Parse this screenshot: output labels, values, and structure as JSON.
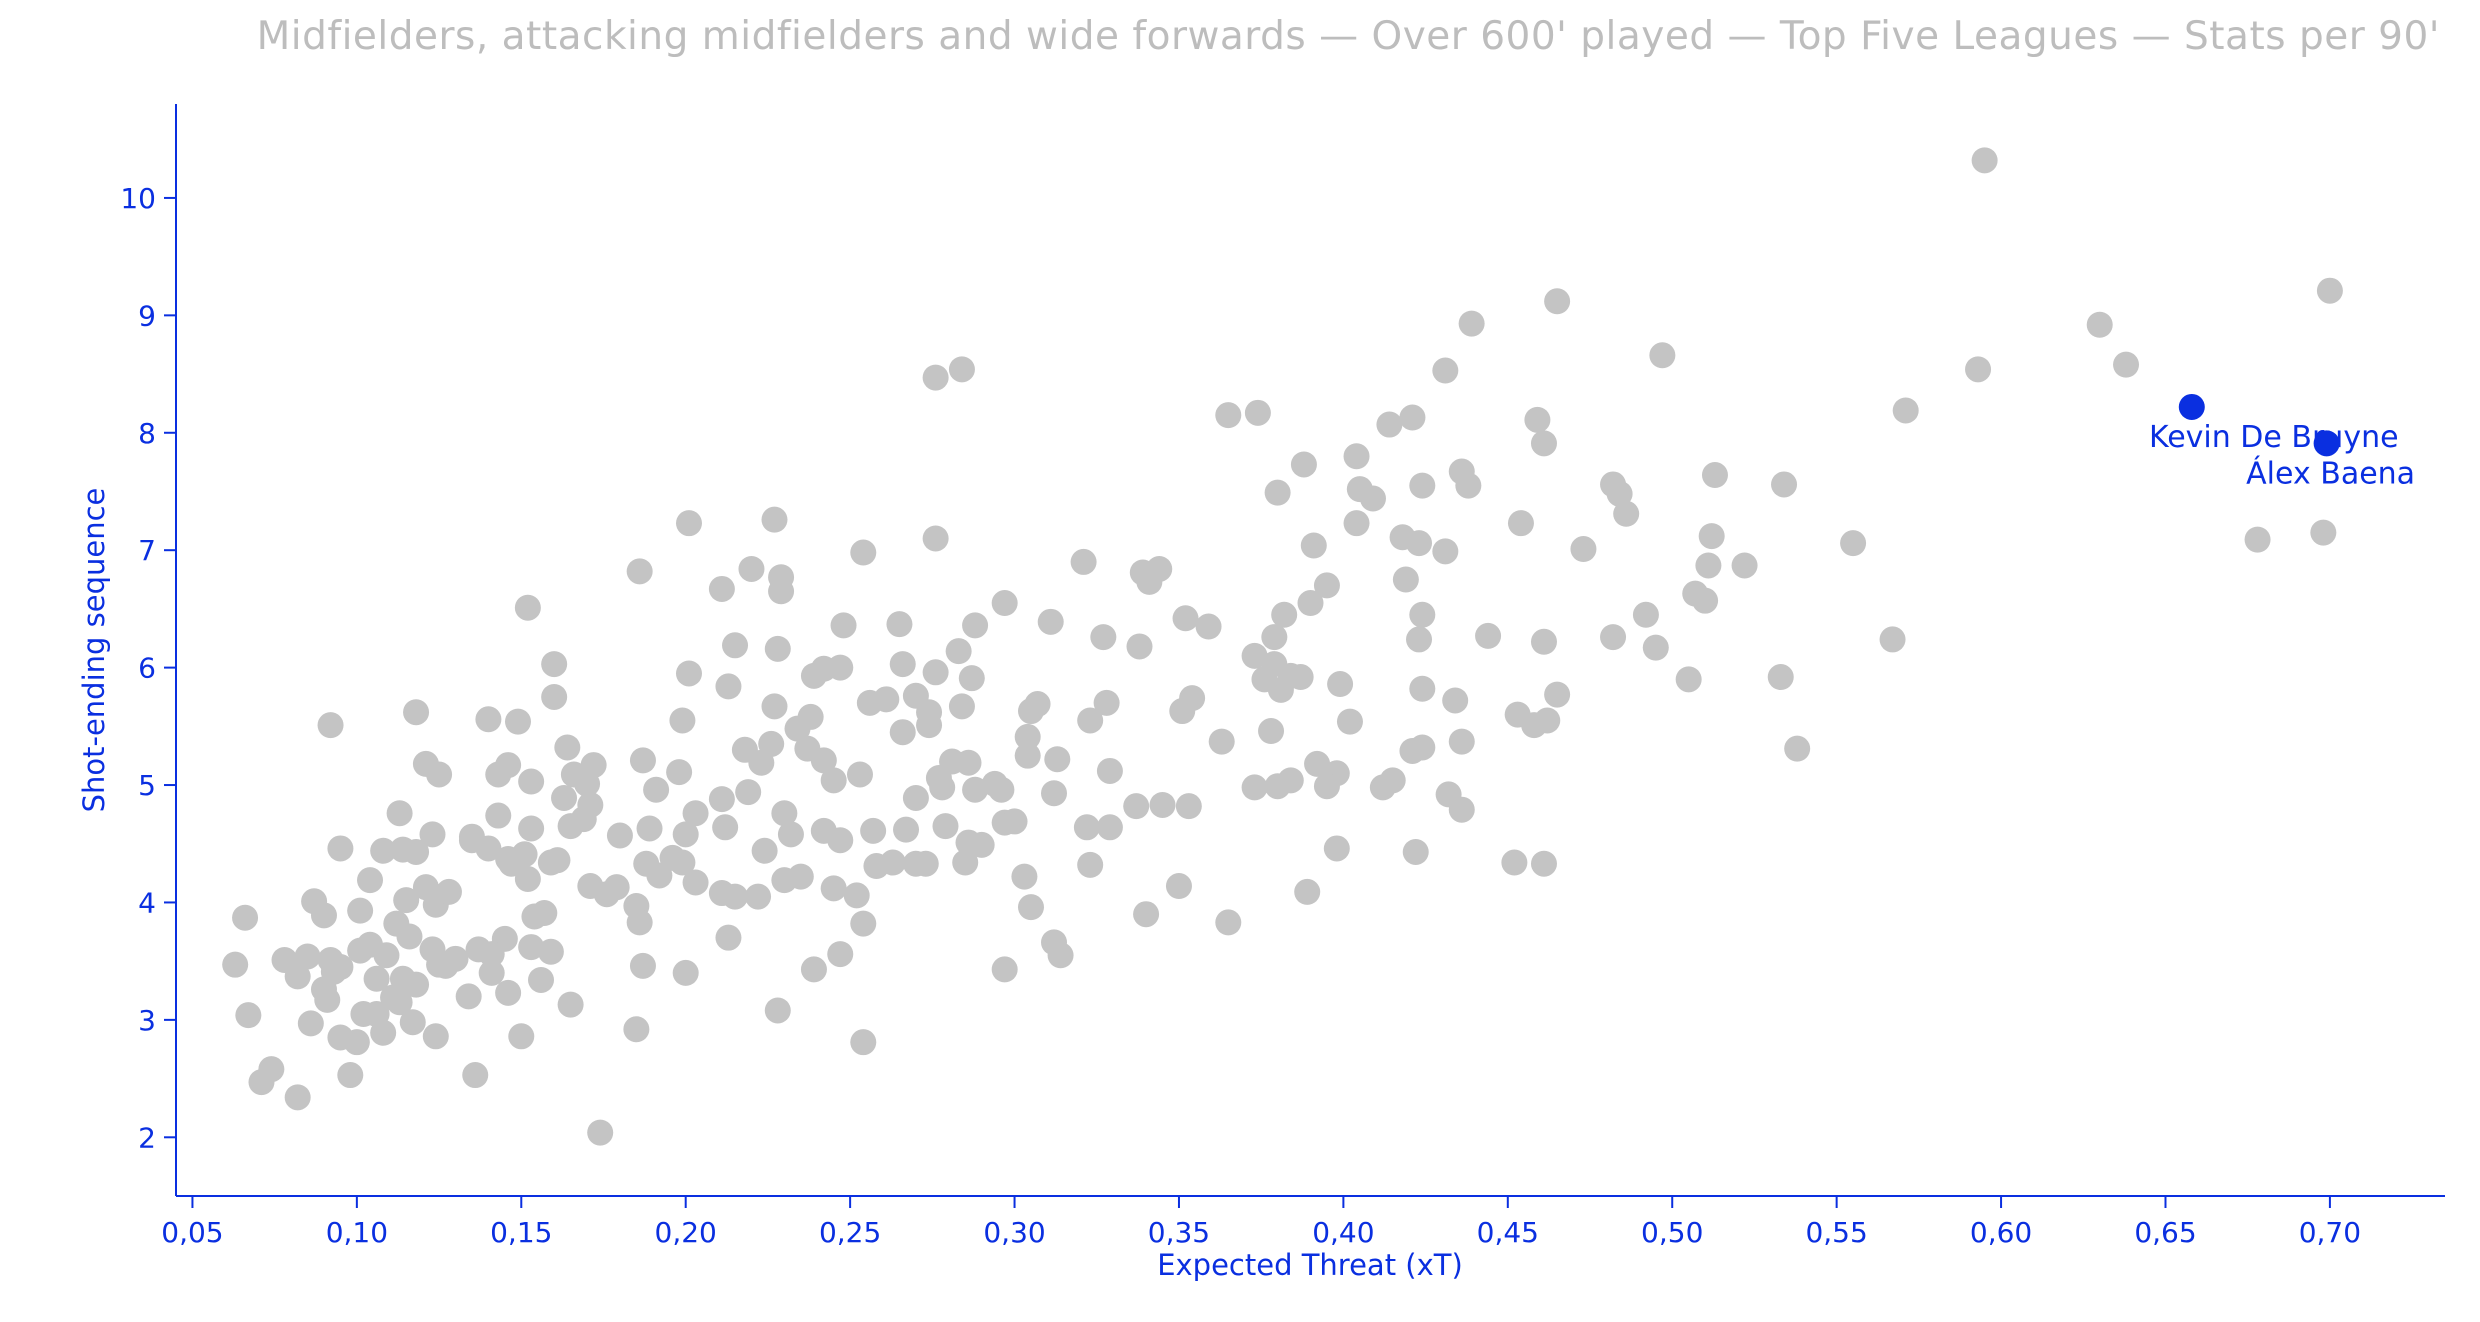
{
  "chart_data": {
    "type": "scatter",
    "subtitle": "Midfielders, attacking midfielders and wide forwards — Over 600' played — Top Five Leagues — Stats per 90'",
    "xlabel": "Expected Threat (xT)",
    "ylabel": "Shot-ending sequence",
    "xlim": [
      0.045,
      0.735
    ],
    "ylim": [
      1.5,
      10.8
    ],
    "x_ticks": [
      "0,05",
      "0,10",
      "0,15",
      "0,20",
      "0,25",
      "0,30",
      "0,35",
      "0,40",
      "0,45",
      "0,50",
      "0,55",
      "0,60",
      "0,65",
      "0,70"
    ],
    "y_ticks": [
      "2",
      "3",
      "4",
      "5",
      "6",
      "7",
      "8",
      "9",
      "10"
    ],
    "grid": false,
    "colors": {
      "points": "#c4c4c4",
      "highlight": "#0a2fe0",
      "axis": "#0a2fe0",
      "subtitle": "#bdbdbd"
    },
    "highlighted": [
      {
        "name": "Kevin De Bruyne",
        "x": 0.658,
        "y": 8.22
      },
      {
        "name": "Álex Baena",
        "x": 0.699,
        "y": 7.91
      }
    ],
    "points": [
      [
        0.595,
        10.32
      ],
      [
        0.7,
        9.21
      ],
      [
        0.465,
        9.12
      ],
      [
        0.439,
        8.93
      ],
      [
        0.63,
        8.92
      ],
      [
        0.497,
        8.66
      ],
      [
        0.593,
        8.54
      ],
      [
        0.638,
        8.58
      ],
      [
        0.284,
        8.54
      ],
      [
        0.276,
        8.47
      ],
      [
        0.431,
        8.53
      ],
      [
        0.571,
        8.19
      ],
      [
        0.365,
        8.15
      ],
      [
        0.374,
        8.17
      ],
      [
        0.414,
        8.07
      ],
      [
        0.421,
        8.13
      ],
      [
        0.459,
        8.11
      ],
      [
        0.461,
        7.91
      ],
      [
        0.404,
        7.8
      ],
      [
        0.388,
        7.73
      ],
      [
        0.436,
        7.67
      ],
      [
        0.438,
        7.55
      ],
      [
        0.424,
        7.55
      ],
      [
        0.38,
        7.49
      ],
      [
        0.405,
        7.52
      ],
      [
        0.409,
        7.44
      ],
      [
        0.482,
        7.56
      ],
      [
        0.484,
        7.48
      ],
      [
        0.513,
        7.64
      ],
      [
        0.534,
        7.56
      ],
      [
        0.486,
        7.31
      ],
      [
        0.454,
        7.23
      ],
      [
        0.404,
        7.23
      ],
      [
        0.227,
        7.26
      ],
      [
        0.201,
        7.23
      ],
      [
        0.512,
        7.12
      ],
      [
        0.555,
        7.06
      ],
      [
        0.418,
        7.11
      ],
      [
        0.423,
        7.06
      ],
      [
        0.431,
        6.99
      ],
      [
        0.473,
        7.01
      ],
      [
        0.511,
        6.87
      ],
      [
        0.522,
        6.87
      ],
      [
        0.678,
        7.09
      ],
      [
        0.698,
        7.15
      ],
      [
        0.276,
        7.1
      ],
      [
        0.254,
        6.98
      ],
      [
        0.186,
        6.82
      ],
      [
        0.22,
        6.84
      ],
      [
        0.229,
        6.77
      ],
      [
        0.211,
        6.67
      ],
      [
        0.229,
        6.65
      ],
      [
        0.321,
        6.9
      ],
      [
        0.339,
        6.81
      ],
      [
        0.344,
        6.84
      ],
      [
        0.341,
        6.73
      ],
      [
        0.391,
        7.04
      ],
      [
        0.395,
        6.7
      ],
      [
        0.419,
        6.75
      ],
      [
        0.39,
        6.55
      ],
      [
        0.297,
        6.55
      ],
      [
        0.288,
        6.36
      ],
      [
        0.265,
        6.37
      ],
      [
        0.248,
        6.36
      ],
      [
        0.152,
        6.51
      ],
      [
        0.311,
        6.39
      ],
      [
        0.352,
        6.42
      ],
      [
        0.359,
        6.35
      ],
      [
        0.382,
        6.45
      ],
      [
        0.424,
        6.45
      ],
      [
        0.423,
        6.24
      ],
      [
        0.444,
        6.27
      ],
      [
        0.461,
        6.22
      ],
      [
        0.482,
        6.26
      ],
      [
        0.492,
        6.45
      ],
      [
        0.495,
        6.17
      ],
      [
        0.507,
        6.63
      ],
      [
        0.51,
        6.57
      ],
      [
        0.567,
        6.24
      ],
      [
        0.327,
        6.26
      ],
      [
        0.338,
        6.18
      ],
      [
        0.373,
        6.1
      ],
      [
        0.379,
        6.26
      ],
      [
        0.379,
        6.03
      ],
      [
        0.16,
        6.03
      ],
      [
        0.215,
        6.19
      ],
      [
        0.228,
        6.16
      ],
      [
        0.201,
        5.95
      ],
      [
        0.242,
        5.99
      ],
      [
        0.247,
        6.0
      ],
      [
        0.239,
        5.93
      ],
      [
        0.266,
        6.03
      ],
      [
        0.276,
        5.96
      ],
      [
        0.283,
        6.14
      ],
      [
        0.287,
        5.91
      ],
      [
        0.384,
        5.93
      ],
      [
        0.387,
        5.92
      ],
      [
        0.376,
        5.9
      ],
      [
        0.399,
        5.86
      ],
      [
        0.424,
        5.82
      ],
      [
        0.434,
        5.72
      ],
      [
        0.465,
        5.77
      ],
      [
        0.505,
        5.9
      ],
      [
        0.533,
        5.92
      ],
      [
        0.118,
        5.62
      ],
      [
        0.16,
        5.75
      ],
      [
        0.149,
        5.54
      ],
      [
        0.14,
        5.56
      ],
      [
        0.199,
        5.55
      ],
      [
        0.213,
        5.84
      ],
      [
        0.227,
        5.67
      ],
      [
        0.234,
        5.48
      ],
      [
        0.238,
        5.58
      ],
      [
        0.256,
        5.7
      ],
      [
        0.261,
        5.73
      ],
      [
        0.27,
        5.76
      ],
      [
        0.274,
        5.62
      ],
      [
        0.284,
        5.67
      ],
      [
        0.305,
        5.63
      ],
      [
        0.307,
        5.69
      ],
      [
        0.323,
        5.55
      ],
      [
        0.328,
        5.7
      ],
      [
        0.351,
        5.63
      ],
      [
        0.354,
        5.74
      ],
      [
        0.381,
        5.81
      ],
      [
        0.402,
        5.54
      ],
      [
        0.453,
        5.6
      ],
      [
        0.458,
        5.51
      ],
      [
        0.462,
        5.55
      ],
      [
        0.538,
        5.31
      ],
      [
        0.092,
        5.51
      ],
      [
        0.121,
        5.18
      ],
      [
        0.125,
        5.09
      ],
      [
        0.143,
        5.09
      ],
      [
        0.146,
        5.17
      ],
      [
        0.153,
        5.03
      ],
      [
        0.164,
        5.32
      ],
      [
        0.166,
        5.09
      ],
      [
        0.17,
        5.01
      ],
      [
        0.172,
        5.17
      ],
      [
        0.187,
        5.21
      ],
      [
        0.198,
        5.11
      ],
      [
        0.211,
        4.88
      ],
      [
        0.218,
        5.3
      ],
      [
        0.223,
        5.19
      ],
      [
        0.226,
        5.35
      ],
      [
        0.237,
        5.31
      ],
      [
        0.242,
        5.21
      ],
      [
        0.245,
        5.04
      ],
      [
        0.253,
        5.09
      ],
      [
        0.266,
        5.45
      ],
      [
        0.274,
        5.51
      ],
      [
        0.277,
        5.06
      ],
      [
        0.281,
        5.2
      ],
      [
        0.286,
        5.19
      ],
      [
        0.294,
        5.01
      ],
      [
        0.304,
        5.25
      ],
      [
        0.304,
        5.41
      ],
      [
        0.313,
        5.22
      ],
      [
        0.329,
        5.12
      ],
      [
        0.363,
        5.37
      ],
      [
        0.378,
        5.46
      ],
      [
        0.392,
        5.18
      ],
      [
        0.398,
        5.1
      ],
      [
        0.421,
        5.29
      ],
      [
        0.436,
        5.37
      ],
      [
        0.415,
        5.04
      ],
      [
        0.412,
        4.98
      ],
      [
        0.424,
        5.32
      ],
      [
        0.373,
        4.98
      ],
      [
        0.38,
        4.99
      ],
      [
        0.384,
        5.04
      ],
      [
        0.395,
        4.99
      ],
      [
        0.113,
        4.76
      ],
      [
        0.114,
        4.45
      ],
      [
        0.123,
        4.58
      ],
      [
        0.135,
        4.56
      ],
      [
        0.14,
        4.46
      ],
      [
        0.143,
        4.74
      ],
      [
        0.146,
        4.37
      ],
      [
        0.151,
        4.41
      ],
      [
        0.153,
        4.63
      ],
      [
        0.159,
        4.34
      ],
      [
        0.163,
        4.89
      ],
      [
        0.165,
        4.65
      ],
      [
        0.169,
        4.71
      ],
      [
        0.171,
        4.83
      ],
      [
        0.18,
        4.57
      ],
      [
        0.189,
        4.63
      ],
      [
        0.191,
        4.96
      ],
      [
        0.196,
        4.38
      ],
      [
        0.2,
        4.58
      ],
      [
        0.203,
        4.76
      ],
      [
        0.212,
        4.64
      ],
      [
        0.219,
        4.94
      ],
      [
        0.224,
        4.44
      ],
      [
        0.23,
        4.76
      ],
      [
        0.232,
        4.58
      ],
      [
        0.242,
        4.61
      ],
      [
        0.247,
        4.53
      ],
      [
        0.257,
        4.61
      ],
      [
        0.267,
        4.62
      ],
      [
        0.27,
        4.89
      ],
      [
        0.278,
        4.98
      ],
      [
        0.279,
        4.65
      ],
      [
        0.286,
        4.51
      ],
      [
        0.288,
        4.96
      ],
      [
        0.296,
        4.96
      ],
      [
        0.297,
        4.68
      ],
      [
        0.3,
        4.69
      ],
      [
        0.312,
        4.93
      ],
      [
        0.322,
        4.64
      ],
      [
        0.329,
        4.64
      ],
      [
        0.337,
        4.82
      ],
      [
        0.345,
        4.83
      ],
      [
        0.353,
        4.82
      ],
      [
        0.432,
        4.92
      ],
      [
        0.436,
        4.79
      ],
      [
        0.095,
        4.46
      ],
      [
        0.104,
        4.19
      ],
      [
        0.108,
        4.44
      ],
      [
        0.115,
        4.02
      ],
      [
        0.118,
        4.43
      ],
      [
        0.121,
        4.13
      ],
      [
        0.124,
        3.98
      ],
      [
        0.128,
        4.09
      ],
      [
        0.135,
        4.53
      ],
      [
        0.147,
        4.33
      ],
      [
        0.152,
        4.2
      ],
      [
        0.157,
        3.91
      ],
      [
        0.161,
        4.36
      ],
      [
        0.171,
        4.14
      ],
      [
        0.176,
        4.07
      ],
      [
        0.179,
        4.13
      ],
      [
        0.185,
        3.97
      ],
      [
        0.188,
        4.33
      ],
      [
        0.192,
        4.23
      ],
      [
        0.199,
        4.34
      ],
      [
        0.203,
        4.17
      ],
      [
        0.211,
        4.08
      ],
      [
        0.215,
        4.05
      ],
      [
        0.222,
        4.05
      ],
      [
        0.23,
        4.19
      ],
      [
        0.235,
        4.22
      ],
      [
        0.245,
        4.12
      ],
      [
        0.252,
        4.06
      ],
      [
        0.258,
        4.31
      ],
      [
        0.263,
        4.34
      ],
      [
        0.27,
        4.33
      ],
      [
        0.273,
        4.33
      ],
      [
        0.285,
        4.34
      ],
      [
        0.29,
        4.49
      ],
      [
        0.303,
        4.22
      ],
      [
        0.305,
        3.96
      ],
      [
        0.323,
        4.32
      ],
      [
        0.34,
        3.9
      ],
      [
        0.35,
        4.14
      ],
      [
        0.365,
        3.83
      ],
      [
        0.389,
        4.09
      ],
      [
        0.398,
        4.46
      ],
      [
        0.422,
        4.43
      ],
      [
        0.452,
        4.34
      ],
      [
        0.461,
        4.33
      ],
      [
        0.066,
        3.87
      ],
      [
        0.087,
        4.01
      ],
      [
        0.09,
        3.89
      ],
      [
        0.101,
        3.93
      ],
      [
        0.112,
        3.82
      ],
      [
        0.116,
        3.71
      ],
      [
        0.13,
        3.52
      ],
      [
        0.137,
        3.6
      ],
      [
        0.141,
        3.4
      ],
      [
        0.145,
        3.69
      ],
      [
        0.154,
        3.88
      ],
      [
        0.159,
        3.58
      ],
      [
        0.186,
        3.83
      ],
      [
        0.187,
        3.46
      ],
      [
        0.2,
        3.4
      ],
      [
        0.213,
        3.7
      ],
      [
        0.239,
        3.43
      ],
      [
        0.247,
        3.56
      ],
      [
        0.254,
        3.82
      ],
      [
        0.297,
        3.43
      ],
      [
        0.312,
        3.66
      ],
      [
        0.314,
        3.55
      ],
      [
        0.063,
        3.47
      ],
      [
        0.078,
        3.51
      ],
      [
        0.082,
        3.37
      ],
      [
        0.085,
        3.54
      ],
      [
        0.09,
        3.26
      ],
      [
        0.092,
        3.51
      ],
      [
        0.093,
        3.41
      ],
      [
        0.095,
        3.45
      ],
      [
        0.101,
        3.59
      ],
      [
        0.104,
        3.64
      ],
      [
        0.106,
        3.35
      ],
      [
        0.109,
        3.55
      ],
      [
        0.111,
        3.19
      ],
      [
        0.114,
        3.35
      ],
      [
        0.118,
        3.3
      ],
      [
        0.123,
        3.6
      ],
      [
        0.125,
        3.47
      ],
      [
        0.127,
        3.46
      ],
      [
        0.134,
        3.2
      ],
      [
        0.141,
        3.56
      ],
      [
        0.146,
        3.23
      ],
      [
        0.153,
        3.62
      ],
      [
        0.156,
        3.34
      ],
      [
        0.165,
        3.13
      ],
      [
        0.067,
        3.04
      ],
      [
        0.086,
        2.97
      ],
      [
        0.091,
        3.17
      ],
      [
        0.095,
        2.85
      ],
      [
        0.1,
        2.81
      ],
      [
        0.102,
        3.05
      ],
      [
        0.106,
        3.05
      ],
      [
        0.108,
        2.89
      ],
      [
        0.113,
        3.15
      ],
      [
        0.117,
        2.98
      ],
      [
        0.124,
        2.86
      ],
      [
        0.136,
        2.53
      ],
      [
        0.15,
        2.86
      ],
      [
        0.185,
        2.92
      ],
      [
        0.228,
        3.08
      ],
      [
        0.071,
        2.47
      ],
      [
        0.074,
        2.58
      ],
      [
        0.082,
        2.34
      ],
      [
        0.098,
        2.53
      ],
      [
        0.174,
        2.04
      ],
      [
        0.254,
        2.81
      ]
    ]
  }
}
